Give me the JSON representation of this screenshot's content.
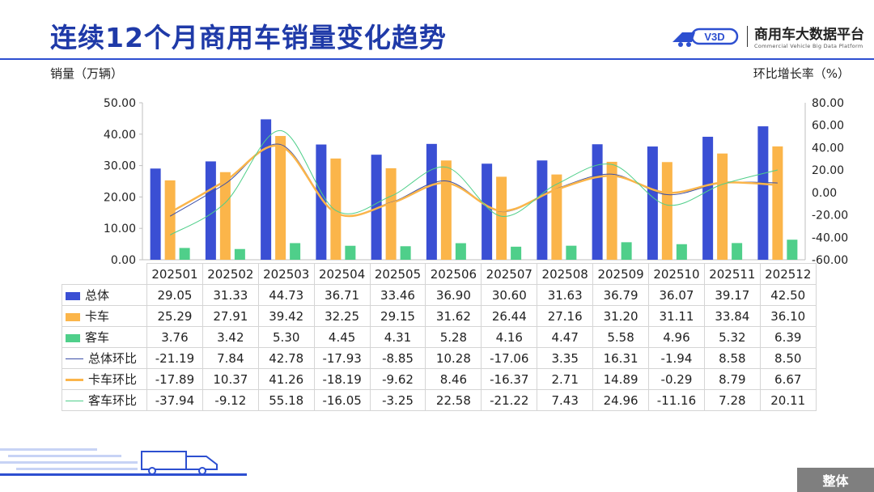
{
  "title": "连续12个月商用车销量变化趋势",
  "brand": {
    "cn": "商用车大数据平台",
    "en": "Commercial Vehicle Big Data Platform",
    "mark": "V3D"
  },
  "bottom_tab": "整体",
  "chart_data": {
    "type": "bar",
    "categories": [
      "202501",
      "202502",
      "202503",
      "202504",
      "202505",
      "202506",
      "202507",
      "202508",
      "202509",
      "202510",
      "202511",
      "202512"
    ],
    "ylabel": "销量（万辆）",
    "y2label": "环比增长率（%）",
    "ylim": [
      0,
      50
    ],
    "y2lim": [
      -60,
      80
    ],
    "yticks": [
      "0.00",
      "10.00",
      "20.00",
      "30.00",
      "40.00",
      "50.00"
    ],
    "y2ticks": [
      "-60.00",
      "-40.00",
      "-20.00",
      "0.00",
      "20.00",
      "40.00",
      "60.00",
      "80.00"
    ],
    "series": [
      {
        "name": "总体",
        "type": "bar",
        "color": "#3a4fd4",
        "values": [
          29.05,
          31.33,
          44.73,
          36.71,
          33.46,
          36.9,
          30.6,
          31.63,
          36.79,
          36.07,
          39.17,
          42.5
        ]
      },
      {
        "name": "卡车",
        "type": "bar",
        "color": "#fbb54a",
        "values": [
          25.29,
          27.91,
          39.42,
          32.25,
          29.15,
          31.62,
          26.44,
          27.16,
          31.2,
          31.11,
          33.84,
          36.1
        ]
      },
      {
        "name": "客车",
        "type": "bar",
        "color": "#4fcf8a",
        "values": [
          3.76,
          3.42,
          5.3,
          4.45,
          4.31,
          5.28,
          4.16,
          4.47,
          5.58,
          4.96,
          5.32,
          6.39
        ]
      },
      {
        "name": "总体环比",
        "type": "line",
        "color": "#3b4fa8",
        "values": [
          -21.19,
          7.84,
          42.78,
          -17.93,
          -8.85,
          10.28,
          -17.06,
          3.35,
          16.31,
          -1.94,
          8.58,
          8.5
        ]
      },
      {
        "name": "卡车环比",
        "type": "line",
        "color": "#fbb54a",
        "values": [
          -17.89,
          10.37,
          41.26,
          -18.19,
          -9.62,
          8.46,
          -16.37,
          2.71,
          14.89,
          -0.29,
          8.79,
          6.67
        ]
      },
      {
        "name": "客车环比",
        "type": "line",
        "color": "#4fcf8a",
        "values": [
          -37.94,
          -9.12,
          55.18,
          -16.05,
          -3.25,
          22.58,
          -21.22,
          7.43,
          24.96,
          -11.16,
          7.28,
          20.11
        ]
      }
    ],
    "legend": "table-bottom",
    "grid": false
  }
}
